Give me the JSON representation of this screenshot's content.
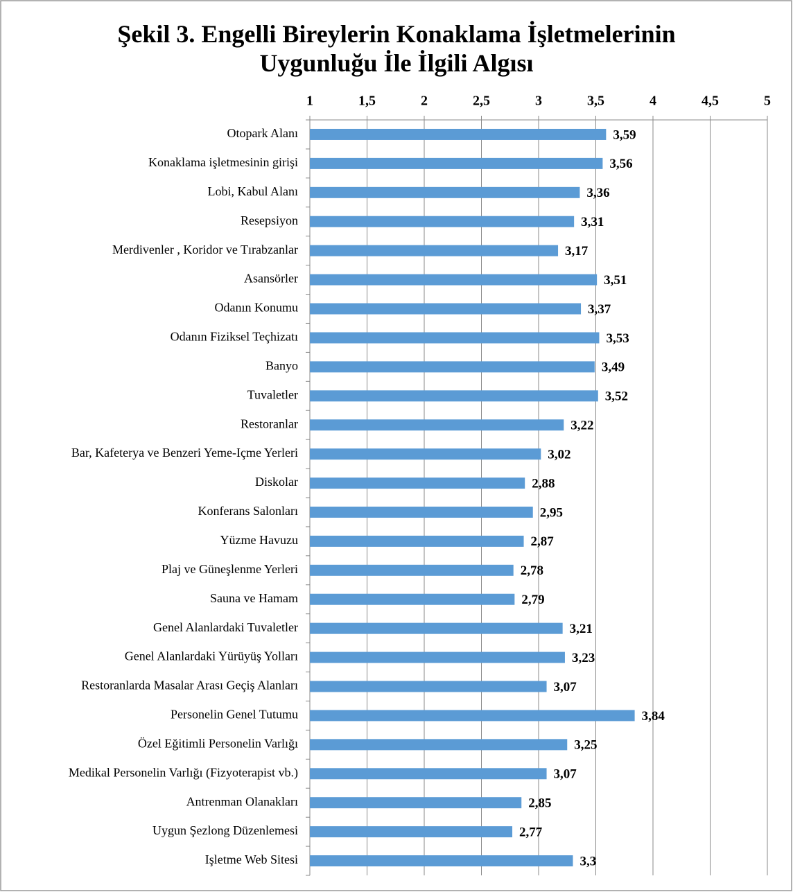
{
  "chart_data": {
    "type": "bar",
    "orientation": "horizontal",
    "title": "Şekil 3. Engelli Bireylerin Konaklama İşletmelerinin Uygunluğu İle İlgili Algısı",
    "categories": [
      "Otopark Alanı",
      "Konaklama işletmesinin girişi",
      "Lobi, Kabul Alanı",
      "Resepsiyon",
      "Merdivenler , Koridor ve Tırabzanlar",
      "Asansörler",
      "Odanın Konumu",
      "Odanın Fiziksel Teçhizatı",
      "Banyo",
      "Tuvaletler",
      "Restoranlar",
      "Bar,  Kafeterya  ve Benzeri Yeme-Içme Yerleri",
      "Diskolar",
      "Konferans Salonları",
      "Yüzme Havuzu",
      "Plaj ve Güneşlenme Yerleri",
      "Sauna ve Hamam",
      "Genel Alanlardaki Tuvaletler",
      "Genel Alanlardaki Yürüyüş Yolları",
      "Restoranlarda Masalar Arası Geçiş Alanları",
      "Personelin Genel Tutumu",
      "Özel Eğitimli Personelin Varlığı",
      "Medikal Personelin Varlığı (Fizyoterapist vb.)",
      "Antrenman Olanakları",
      "Uygun Şezlong Düzenlemesi",
      "Işletme Web Sitesi"
    ],
    "values": [
      3.59,
      3.56,
      3.36,
      3.31,
      3.17,
      3.51,
      3.37,
      3.53,
      3.49,
      3.52,
      3.22,
      3.02,
      2.88,
      2.95,
      2.87,
      2.78,
      2.79,
      3.21,
      3.23,
      3.07,
      3.84,
      3.25,
      3.07,
      2.85,
      2.77,
      3.3
    ],
    "value_labels": [
      "3,59",
      "3,56",
      "3,36",
      "3,31",
      "3,17",
      "3,51",
      "3,37",
      "3,53",
      "3,49",
      "3,52",
      "3,22",
      "3,02",
      "2,88",
      "2,95",
      "2,87",
      "2,78",
      "2,79",
      "3,21",
      "3,23",
      "3,07",
      "3,84",
      "3,25",
      "3,07",
      "2,85",
      "2,77",
      "3,3"
    ],
    "color": "#5b9bd5",
    "xlim": [
      1,
      5
    ],
    "xticks": [
      1,
      {
        "value": 1.5,
        "label": "1,5"
      },
      2,
      {
        "value": 2.5,
        "label": "2,5"
      },
      3,
      {
        "value": 3.5,
        "label": "3,5"
      },
      4,
      {
        "value": 4.5,
        "label": "4,5"
      },
      5
    ],
    "grid": true
  }
}
